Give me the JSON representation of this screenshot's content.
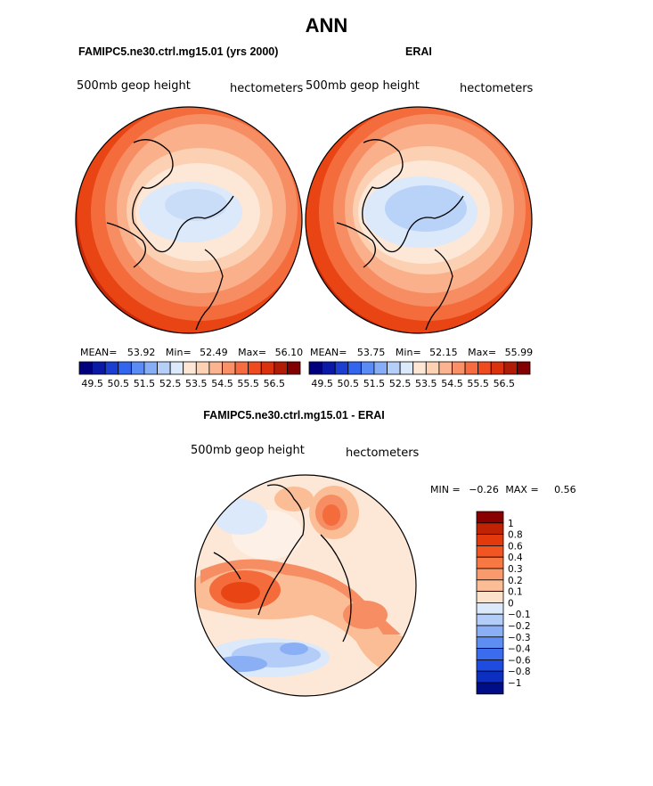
{
  "page": {
    "title": "ANN"
  },
  "panels": {
    "left": {
      "case": "FAMIPC5.ne30.ctrl.mg15.01 (yrs 2000)",
      "variable": "500mb geop height",
      "units": "hectometers",
      "stats": {
        "mean_label": "MEAN=",
        "mean": "53.92",
        "min_label": "Min=",
        "min": "52.49",
        "max_label": "Max=",
        "max": "56.10"
      }
    },
    "right": {
      "case": "ERAI",
      "variable": "500mb geop height",
      "units": "hectometers",
      "stats": {
        "mean_label": "MEAN=",
        "mean": "53.75",
        "min_label": "Min=",
        "min": "52.15",
        "max_label": "Max=",
        "max": "55.99"
      }
    },
    "diff": {
      "case": "FAMIPC5.ne30.ctrl.mg15.01 - ERAI",
      "variable": "500mb geop height",
      "units": "hectometers",
      "min_label": "MIN =",
      "min": "−0.26",
      "max_label": "MAX =",
      "max": "0.56"
    }
  },
  "colorbar_abs": {
    "colors": [
      "#00007f",
      "#0a1aa6",
      "#1a3fd1",
      "#3366ee",
      "#5b8cf5",
      "#88adf7",
      "#b5cff9",
      "#dbe9fb",
      "#fde6d4",
      "#fcd1b4",
      "#fbb48f",
      "#f99068",
      "#f66b3f",
      "#f04b1e",
      "#d9320d",
      "#b01c05",
      "#830000"
    ],
    "labels": [
      "49.5",
      "50.5",
      "51.5",
      "52.5",
      "53.5",
      "54.5",
      "55.5",
      "56.5"
    ]
  },
  "colorbar_diff": {
    "colors": [
      "#8a0000",
      "#bf2304",
      "#e23a0c",
      "#f25422",
      "#f87844",
      "#f99a6c",
      "#fbbd96",
      "#fde2cb",
      "#dce9fb",
      "#b4cdf8",
      "#8aaff5",
      "#5f8ef3",
      "#3a6ced",
      "#1e4ce0",
      "#0d2fc0",
      "#000d88"
    ],
    "labels": [
      "1",
      "0.8",
      "0.6",
      "0.4",
      "0.3",
      "0.2",
      "0.1",
      "0",
      "−0.1",
      "−0.2",
      "−0.3",
      "−0.4",
      "−0.6",
      "−0.8",
      "−1"
    ]
  }
}
